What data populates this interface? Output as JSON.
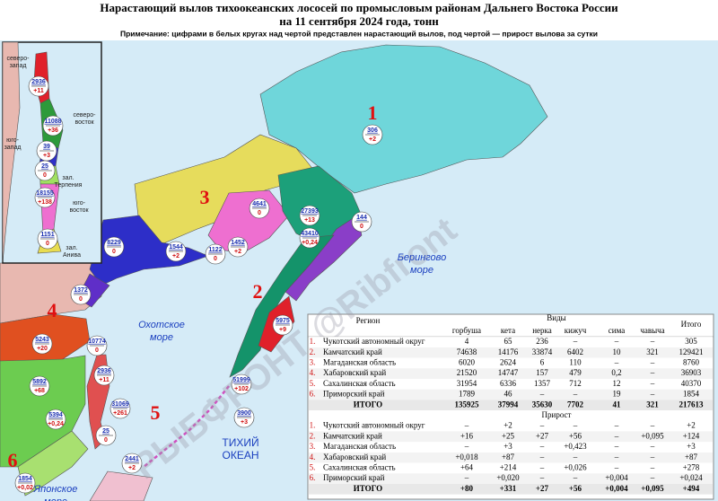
{
  "header": {
    "title_line1": "Нарастающий вылов тихоокеанских лососей по промысловым районам Дальнего Востока России",
    "title_line2": "на 11 сентября 2024 года, тонн",
    "note": "Примечание: цифрами в белых кругах над чертой представлен нарастающий вылов, под чертой — прирост вылова за сутки"
  },
  "map": {
    "region_numbers": [
      "1",
      "2",
      "3",
      "4",
      "5",
      "6"
    ],
    "seas": [
      {
        "lines": [
          "Охотское",
          "море"
        ]
      },
      {
        "lines": [
          "Берингово",
          "море"
        ]
      },
      {
        "lines": [
          "ТИХИЙ",
          "ОКЕАН"
        ]
      },
      {
        "lines": [
          "Японское",
          "море"
        ]
      }
    ],
    "watermark": "РЫБФРОНТ @Ribfront",
    "markers": [
      {
        "total": "306",
        "daily": "+2"
      },
      {
        "total": "27393",
        "daily": "+13"
      },
      {
        "total": "43410",
        "daily": "+0,24"
      },
      {
        "total": "144",
        "daily": "0"
      },
      {
        "total": "4641",
        "daily": "0"
      },
      {
        "total": "1452",
        "daily": "+2"
      },
      {
        "total": "1122",
        "daily": "0"
      },
      {
        "total": "1544",
        "daily": "+2"
      },
      {
        "total": "8229",
        "daily": "0"
      },
      {
        "total": "1372",
        "daily": "0"
      },
      {
        "total": "5243",
        "daily": "+20"
      },
      {
        "total": "10774",
        "daily": "0"
      },
      {
        "total": "5892",
        "daily": "+68"
      },
      {
        "total": "2936",
        "daily": "+11"
      },
      {
        "total": "31069",
        "daily": "+261"
      },
      {
        "total": "5394",
        "daily": "+0,24"
      },
      {
        "total": "25",
        "daily": "0"
      },
      {
        "total": "5975",
        "daily": "+9"
      },
      {
        "total": "51999",
        "daily": "+102"
      },
      {
        "total": "3900",
        "daily": "+3"
      },
      {
        "total": "2441",
        "daily": "+2"
      },
      {
        "total": "1854",
        "daily": "+0,02"
      }
    ],
    "inset": {
      "markers": [
        {
          "total": "2936",
          "daily": "+11"
        },
        {
          "total": "11088",
          "daily": "+36"
        },
        {
          "total": "39",
          "daily": "+3"
        },
        {
          "total": "25",
          "daily": "0"
        },
        {
          "total": "18155",
          "daily": "+138"
        },
        {
          "total": "1151",
          "daily": "0"
        }
      ],
      "labels": [
        {
          "lines": [
            "северо-",
            "запад"
          ]
        },
        {
          "lines": [
            "северо-",
            "восток"
          ]
        },
        {
          "lines": [
            "юго-",
            "запад"
          ]
        },
        {
          "lines": [
            "зал.",
            "Терпения"
          ]
        },
        {
          "lines": [
            "юго-",
            "восток"
          ]
        },
        {
          "lines": [
            "зал.",
            "Анива"
          ]
        }
      ]
    }
  },
  "table": {
    "region_header": "Регион",
    "species_header": "Виды",
    "species": [
      "горбуша",
      "кета",
      "нерка",
      "кижуч",
      "сима",
      "чавыча"
    ],
    "total_header": "Итого",
    "rows": [
      [
        "1.",
        "Чукотский автономный округ",
        "4",
        "65",
        "236",
        "–",
        "–",
        "–",
        "305"
      ],
      [
        "2.",
        "Камчатский край",
        "74638",
        "14176",
        "33874",
        "6402",
        "10",
        "321",
        "129421"
      ],
      [
        "3.",
        "Магаданская область",
        "6020",
        "2624",
        "6",
        "110",
        "–",
        "–",
        "8760"
      ],
      [
        "4.",
        "Хабаровский край",
        "21520",
        "14747",
        "157",
        "479",
        "0,2",
        "–",
        "36903"
      ],
      [
        "5.",
        "Сахалинская область",
        "31954",
        "6336",
        "1357",
        "712",
        "12",
        "–",
        "40370"
      ],
      [
        "6.",
        "Приморский край",
        "1789",
        "46",
        "–",
        "–",
        "19",
        "–",
        "1854"
      ]
    ],
    "total": [
      "ИТОГО",
      "135925",
      "37994",
      "35630",
      "7702",
      "41",
      "321",
      "217613"
    ],
    "increment_title": "Прирост",
    "increment_rows": [
      [
        "1.",
        "Чукотский автономный округ",
        "–",
        "+2",
        "–",
        "–",
        "–",
        "–",
        "+2"
      ],
      [
        "2.",
        "Камчатский край",
        "+16",
        "+25",
        "+27",
        "+56",
        "–",
        "+0,095",
        "+124"
      ],
      [
        "3.",
        "Магаданская область",
        "–",
        "+3",
        "–",
        "+0,423",
        "–",
        "–",
        "+3"
      ],
      [
        "4.",
        "Хабаровский край",
        "+0,018",
        "+87",
        "–",
        "–",
        "–",
        "–",
        "+87"
      ],
      [
        "5.",
        "Сахалинская область",
        "+64",
        "+214",
        "–",
        "+0,026",
        "–",
        "–",
        "+278"
      ],
      [
        "6.",
        "Приморский край",
        "–",
        "+0,020",
        "–",
        "–",
        "+0,004",
        "–",
        "+0,024"
      ]
    ],
    "increment_total": [
      "ИТОГО",
      "+80",
      "+331",
      "+27",
      "+56",
      "+0,004",
      "+0,095",
      "+494"
    ]
  }
}
